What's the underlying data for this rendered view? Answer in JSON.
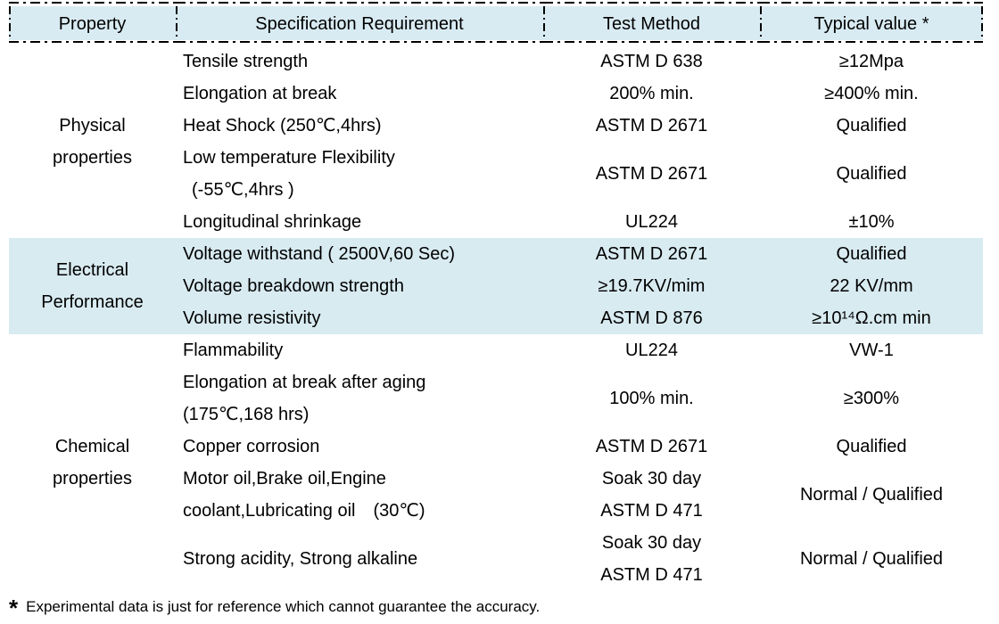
{
  "table": {
    "headers": [
      "Property",
      "Specification Requirement",
      "Test Method",
      "Typical value *"
    ],
    "sections": [
      {
        "property": "Physical\nproperties",
        "rows": [
          {
            "spec": "Tensile strength",
            "method": "ASTM D 638",
            "value": "≥12Mpa"
          },
          {
            "spec": "Elongation at break",
            "method": "200% min.",
            "value": "≥400% min."
          },
          {
            "spec": "Heat Shock (250℃,4hrs)",
            "method": "ASTM D 2671",
            "value": "Qualified"
          },
          {
            "spec": "Low temperature Flexibility\n (-55℃,4hrs )",
            "method": "ASTM D 2671",
            "value": "Qualified"
          },
          {
            "spec": "Longitudinal shrinkage",
            "method": "UL224",
            "value": "±10%"
          }
        ]
      },
      {
        "property": "Electrical\nPerformance",
        "highlighted": true,
        "rows": [
          {
            "spec": "Voltage withstand ( 2500V,60 Sec)",
            "method": "ASTM D 2671",
            "value": "Qualified"
          },
          {
            "spec": "Voltage breakdown strength",
            "method": "≥19.7KV/mim",
            "value": "22 KV/mm"
          },
          {
            "spec": "Volume resistivity",
            "method": "ASTM D 876",
            "value": "≥10¹⁴Ω.cm min"
          }
        ]
      },
      {
        "property": "Chemical\nproperties",
        "rows": [
          {
            "spec": "Flammability",
            "method": "UL224",
            "value": "VW-1"
          },
          {
            "spec": "Elongation at break after aging\n(175℃,168 hrs)",
            "method": "100% min.",
            "value": "≥300%"
          },
          {
            "spec": "Copper corrosion",
            "method": "ASTM D 2671",
            "value": "Qualified"
          },
          {
            "spec": "Motor oil,Brake oil,Engine\ncoolant,Lubricating oil  (30℃)",
            "method": "Soak 30 day\nASTM D 471",
            "value": "Normal / Qualified"
          },
          {
            "spec": "Strong acidity, Strong alkaline",
            "method": "Soak 30 day\nASTM D 471",
            "value": "Normal / Qualified"
          }
        ]
      }
    ]
  },
  "footnote": {
    "marker": "*",
    "text": "Experimental data is just for reference which cannot guarantee the accuracy."
  },
  "colors": {
    "header_background": "#d9ebf2",
    "electrical_band_background": "#d8ebf1",
    "border": "#000000",
    "text": "#000000"
  }
}
